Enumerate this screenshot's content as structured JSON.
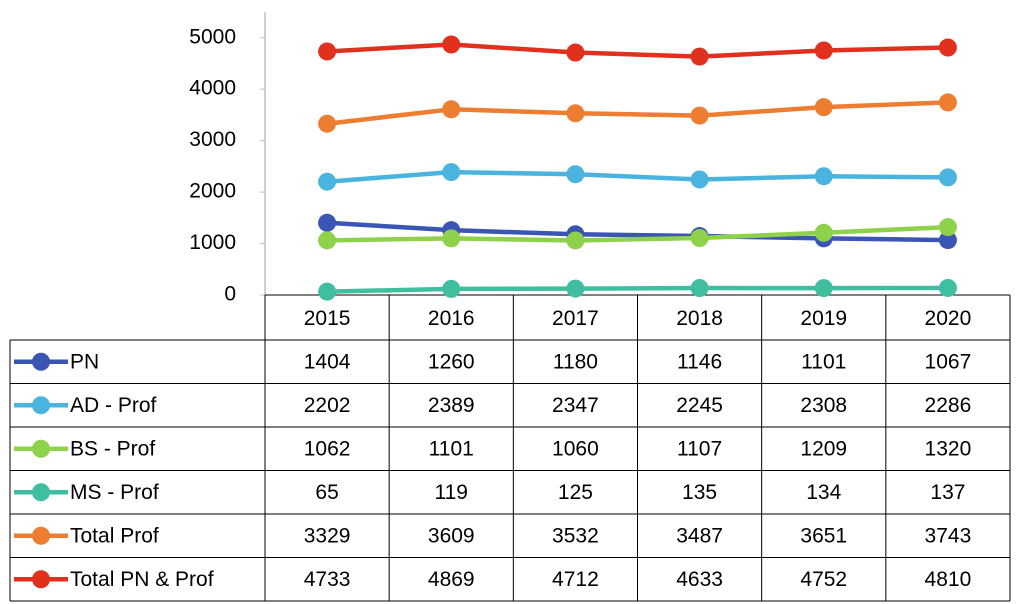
{
  "chart_data": {
    "type": "line",
    "categories": [
      "2015",
      "2016",
      "2017",
      "2018",
      "2019",
      "2020"
    ],
    "series": [
      {
        "name": "PN",
        "color": "#3a55b4",
        "values": [
          1404,
          1260,
          1180,
          1146,
          1101,
          1067
        ]
      },
      {
        "name": "AD - Prof",
        "color": "#4ab4de",
        "values": [
          2202,
          2389,
          2347,
          2245,
          2308,
          2286
        ]
      },
      {
        "name": "BS - Prof",
        "color": "#8ed14a",
        "values": [
          1062,
          1101,
          1060,
          1107,
          1209,
          1320
        ]
      },
      {
        "name": "MS - Prof",
        "color": "#3fbf9f",
        "values": [
          65,
          119,
          125,
          135,
          134,
          137
        ]
      },
      {
        "name": "Total Prof",
        "color": "#ed7d31",
        "values": [
          3329,
          3609,
          3532,
          3487,
          3651,
          3743
        ]
      },
      {
        "name": "Total PN & Prof",
        "color": "#e0301e",
        "values": [
          4733,
          4869,
          4712,
          4633,
          4752,
          4810
        ]
      }
    ],
    "ylim": [
      0,
      5500
    ],
    "yticks": [
      0,
      1000,
      2000,
      3000,
      4000,
      5000
    ],
    "grid": false,
    "legend": "table"
  }
}
